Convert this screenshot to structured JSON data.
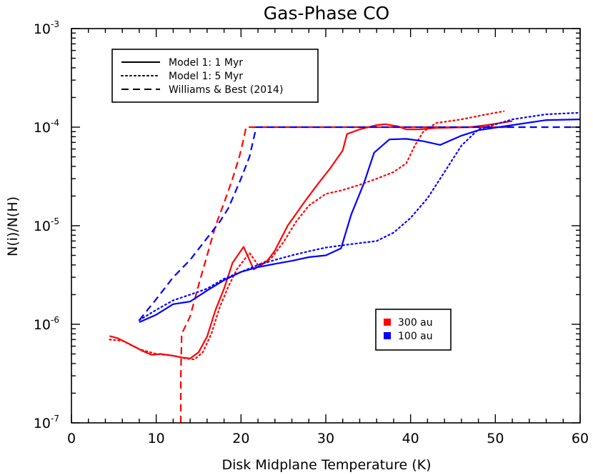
{
  "chart_data": {
    "type": "line",
    "title": "Gas-Phase CO",
    "xlabel": "Disk Midplane Temperature (K)",
    "ylabel": "N(i)/N(H)",
    "xlim": [
      0,
      60
    ],
    "ylim": [
      1e-07,
      0.001
    ],
    "yscale": "log",
    "x_ticks": [
      "0",
      "10",
      "20",
      "30",
      "40",
      "50",
      "60"
    ],
    "y_ticks": [
      {
        "base": "10",
        "exp": "-7",
        "value": 1e-07
      },
      {
        "base": "10",
        "exp": "-6",
        "value": 1e-06
      },
      {
        "base": "10",
        "exp": "-5",
        "value": 1e-05
      },
      {
        "base": "10",
        "exp": "-4",
        "value": 0.0001
      },
      {
        "base": "10",
        "exp": "-3",
        "value": 0.001
      }
    ],
    "grid": false,
    "legend_styles": {
      "position": "top-left",
      "entries": [
        {
          "label": "Model 1: 1 Myr",
          "style": "solid"
        },
        {
          "label": "Model 1: 5 Myr",
          "style": "dotted"
        },
        {
          "label": "Williams & Best (2014)",
          "style": "dashed"
        }
      ]
    },
    "legend_colors": {
      "position": "center-right",
      "entries": [
        {
          "label": "300 au",
          "color": "#ff0000"
        },
        {
          "label": "100 au",
          "color": "#0000ff"
        }
      ]
    },
    "series": [
      {
        "color": "#ff0000",
        "style": "solid",
        "points": [
          [
            4.5,
            7.6e-07
          ],
          [
            5.5,
            7.2e-07
          ],
          [
            7,
            6.2e-07
          ],
          [
            8.5,
            5.3e-07
          ],
          [
            9.5,
            4.9e-07
          ],
          [
            10.5,
            5e-07
          ],
          [
            12,
            4.8e-07
          ],
          [
            13,
            4.6e-07
          ],
          [
            14,
            4.5e-07
          ],
          [
            15,
            5.2e-07
          ],
          [
            16,
            7.5e-07
          ],
          [
            17,
            1.4e-06
          ],
          [
            18,
            2.3e-06
          ],
          [
            19,
            4.2e-06
          ],
          [
            20.3,
            6.1e-06
          ],
          [
            21.5,
            3.6e-06
          ],
          [
            23,
            4.3e-06
          ],
          [
            24,
            5.6e-06
          ],
          [
            25.5,
            1e-05
          ],
          [
            27.5,
            1.75e-05
          ],
          [
            29,
            2.6e-05
          ],
          [
            30.5,
            3.8e-05
          ],
          [
            32,
            5.8e-05
          ],
          [
            32.5,
            8.5e-05
          ],
          [
            34,
            9.5e-05
          ],
          [
            36,
            0.000105
          ],
          [
            37,
            0.000107
          ],
          [
            38.5,
            0.000102
          ],
          [
            39.5,
            9.5e-05
          ],
          [
            41,
            9.5e-05
          ],
          [
            43,
            9.8e-05
          ],
          [
            45,
            9.9e-05
          ],
          [
            47,
            0.0001
          ],
          [
            49,
            0.000105
          ],
          [
            52,
            0.000115
          ]
        ]
      },
      {
        "color": "#ff0000",
        "style": "dotted",
        "points": [
          [
            4.5,
            7e-07
          ],
          [
            6,
            6.8e-07
          ],
          [
            8,
            5.6e-07
          ],
          [
            10,
            5e-07
          ],
          [
            12,
            4.8e-07
          ],
          [
            13.5,
            4.5e-07
          ],
          [
            14.5,
            4.4e-07
          ],
          [
            15.5,
            5.2e-07
          ],
          [
            16.5,
            8e-07
          ],
          [
            17.5,
            1.5e-06
          ],
          [
            18.5,
            2.4e-06
          ],
          [
            19.5,
            3.6e-06
          ],
          [
            21,
            5.3e-06
          ],
          [
            22,
            4e-06
          ],
          [
            23.5,
            4.6e-06
          ],
          [
            25,
            6.8e-06
          ],
          [
            26.5,
            1.1e-05
          ],
          [
            28,
            1.6e-05
          ],
          [
            30,
            2.1e-05
          ],
          [
            32,
            2.3e-05
          ],
          [
            34,
            2.6e-05
          ],
          [
            36,
            3e-05
          ],
          [
            38,
            3.5e-05
          ],
          [
            39.5,
            4.3e-05
          ],
          [
            40.5,
            6.5e-05
          ],
          [
            41.5,
            9e-05
          ],
          [
            43,
            0.00011
          ],
          [
            46,
            0.00012
          ],
          [
            49,
            0.000135
          ],
          [
            51,
            0.000145
          ]
        ]
      },
      {
        "color": "#ff0000",
        "style": "dashed",
        "points": [
          [
            12.9,
            1e-07
          ],
          [
            12.9,
            3e-07
          ],
          [
            13,
            8e-07
          ],
          [
            14,
            1.2e-06
          ],
          [
            15,
            2.5e-06
          ],
          [
            16,
            5e-06
          ],
          [
            17,
            1e-05
          ],
          [
            18,
            1.7e-05
          ],
          [
            19,
            3e-05
          ],
          [
            19.8,
            5e-05
          ],
          [
            20.3,
            7.5e-05
          ],
          [
            20.6,
            0.0001
          ],
          [
            25,
            0.0001
          ],
          [
            35,
            0.0001
          ],
          [
            45,
            0.0001
          ],
          [
            52,
            0.0001
          ]
        ]
      },
      {
        "color": "#0000ff",
        "style": "solid",
        "points": [
          [
            8,
            1.05e-06
          ],
          [
            10,
            1.25e-06
          ],
          [
            12,
            1.6e-06
          ],
          [
            14,
            1.7e-06
          ],
          [
            16,
            2.2e-06
          ],
          [
            18,
            2.8e-06
          ],
          [
            20,
            3.4e-06
          ],
          [
            22,
            3.8e-06
          ],
          [
            24,
            4.1e-06
          ],
          [
            26,
            4.4e-06
          ],
          [
            28,
            4.8e-06
          ],
          [
            30,
            5e-06
          ],
          [
            31.8,
            5.9e-06
          ],
          [
            33,
            1.3e-05
          ],
          [
            34.5,
            2.7e-05
          ],
          [
            35.7,
            5.5e-05
          ],
          [
            37.5,
            7.5e-05
          ],
          [
            39.5,
            7.6e-05
          ],
          [
            41.5,
            7.2e-05
          ],
          [
            43.5,
            6.6e-05
          ],
          [
            46,
            8.2e-05
          ],
          [
            48,
            9.3e-05
          ],
          [
            52,
            0.000105
          ],
          [
            56,
            0.000118
          ],
          [
            60,
            0.00012
          ]
        ]
      },
      {
        "color": "#0000ff",
        "style": "dotted",
        "points": [
          [
            8,
            1.1e-06
          ],
          [
            10,
            1.4e-06
          ],
          [
            12,
            1.75e-06
          ],
          [
            14,
            2e-06
          ],
          [
            16,
            2.3e-06
          ],
          [
            18,
            2.9e-06
          ],
          [
            20,
            3.4e-06
          ],
          [
            22,
            4e-06
          ],
          [
            24,
            4.5e-06
          ],
          [
            26,
            5e-06
          ],
          [
            28,
            5.5e-06
          ],
          [
            30,
            6e-06
          ],
          [
            33,
            6.5e-06
          ],
          [
            36,
            7e-06
          ],
          [
            38,
            8.5e-06
          ],
          [
            40,
            1.2e-05
          ],
          [
            42,
            1.9e-05
          ],
          [
            44,
            3.5e-05
          ],
          [
            46,
            6.5e-05
          ],
          [
            48,
            9.5e-05
          ],
          [
            52,
            0.00012
          ],
          [
            56,
            0.000135
          ],
          [
            60,
            0.00014
          ]
        ]
      },
      {
        "color": "#0000ff",
        "style": "dashed",
        "points": [
          [
            8,
            1.1e-06
          ],
          [
            10,
            1.8e-06
          ],
          [
            12,
            3e-06
          ],
          [
            14,
            4.5e-06
          ],
          [
            16,
            7.5e-06
          ],
          [
            17.5,
            1.1e-05
          ],
          [
            18.5,
            1.5e-05
          ],
          [
            20,
            3e-05
          ],
          [
            21,
            5e-05
          ],
          [
            21.8,
            0.0001
          ],
          [
            30,
            0.0001
          ],
          [
            40,
            0.0001
          ],
          [
            50,
            0.0001
          ],
          [
            60,
            0.0001
          ]
        ]
      }
    ]
  }
}
